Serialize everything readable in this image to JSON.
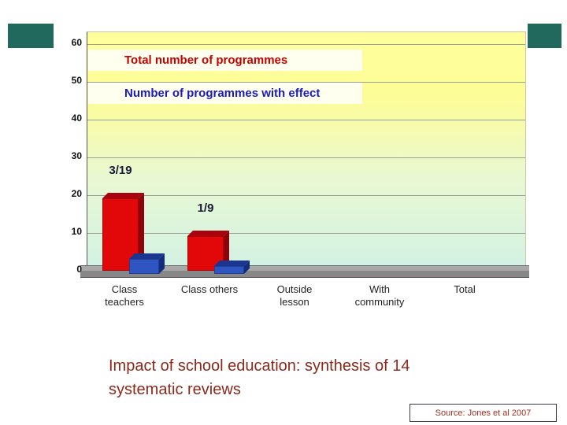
{
  "colors": {
    "accent_bar": "#20695C",
    "caption_text": "#8A2A1B",
    "source_text": "#A03023",
    "plot_bg_top": "#FFFF9C",
    "plot_bg_bottom": "#D3F2E3",
    "floor": "#9A9A9A"
  },
  "chart_data": {
    "type": "bar",
    "variant": "3d-column",
    "title": "",
    "xlabel": "",
    "ylabel": "",
    "categories": [
      "Class teachers",
      "Class others",
      "Outside lesson",
      "With community",
      "Total"
    ],
    "category_lines": [
      [
        "Class",
        "teachers"
      ],
      [
        "Class others"
      ],
      [
        "Outside",
        "lesson"
      ],
      [
        "With",
        "community"
      ],
      [
        "Total"
      ]
    ],
    "series": [
      {
        "name": "Total number of programmes",
        "values": [
          19,
          9,
          0,
          0,
          0
        ],
        "colors": {
          "front": "#E20709",
          "top": "#A80410",
          "side": "#8E040C"
        },
        "label_color": "#C80000"
      },
      {
        "name": "Number of programmes with effect",
        "values": [
          3,
          1,
          0,
          0,
          0
        ],
        "colors": {
          "front": "#2F55C2",
          "top": "#1B3690",
          "side": "#142C7E"
        },
        "label_color": "#1A1AC0"
      }
    ],
    "annotations": [
      "3/19",
      "1/9",
      "",
      "",
      ""
    ],
    "ylim": [
      0,
      60
    ],
    "yticks": [
      0,
      10,
      20,
      30,
      40,
      50,
      60
    ],
    "grid": true,
    "legend_position": "inside-top-left"
  },
  "caption": {
    "text": "Impact of school education: synthesis of 14 systematic reviews"
  },
  "source": {
    "text": "Source: Jones et al 2007"
  }
}
